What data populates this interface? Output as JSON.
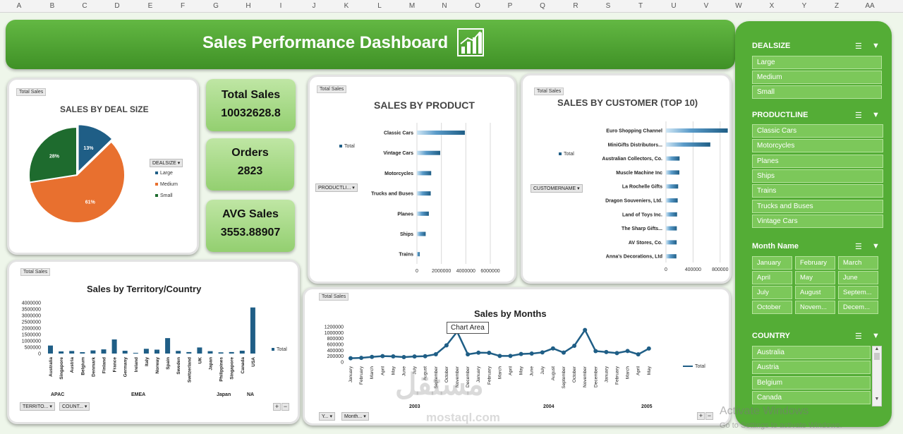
{
  "columns": [
    "A",
    "B",
    "C",
    "D",
    "E",
    "F",
    "G",
    "H",
    "I",
    "J",
    "K",
    "L",
    "M",
    "N",
    "O",
    "P",
    "Q",
    "R",
    "S",
    "T",
    "U",
    "V",
    "W",
    "X",
    "Y",
    "Z",
    "AA"
  ],
  "dashboard": {
    "title": "Sales Performance Dashboard",
    "chip": "Total Sales"
  },
  "deal_pie": {
    "title": "SALES BY DEAL SIZE",
    "legend_filter": "DEALSIZE",
    "legend": [
      "Large",
      "Medium",
      "Small"
    ],
    "labels": [
      "13%",
      "61%",
      "28%"
    ],
    "colors": [
      "#1f5e86",
      "#e8702f",
      "#1e6b2e"
    ]
  },
  "kpis": [
    {
      "label": "Total Sales",
      "value": "10032628.8"
    },
    {
      "label": "Orders",
      "value": "2823"
    },
    {
      "label": "AVG Sales",
      "value": "3553.88907"
    }
  ],
  "product_chart": {
    "title": "SALES BY PRODUCT",
    "legend": "Total",
    "filter": "PRODUCTLI..."
  },
  "customer_chart": {
    "title": "SALES BY CUSTOMER (TOP 10)",
    "legend": "Total",
    "filter": "CUSTOMERNAME"
  },
  "territory_chart": {
    "title": "Sales by Territory/Country",
    "legend": "Total",
    "filters": [
      "TERRITO...",
      "COUNT..."
    ],
    "groups": [
      "APAC",
      "EMEA",
      "Japan",
      "NA"
    ]
  },
  "months_chart": {
    "title": "Sales by Months",
    "legend": "Total",
    "tooltip": "Chart Area",
    "filters": [
      "Y...",
      "Month..."
    ],
    "years": [
      "2003",
      "2004",
      "2005"
    ]
  },
  "chart_data": [
    {
      "type": "pie",
      "title": "SALES BY DEAL SIZE",
      "categories": [
        "Large",
        "Medium",
        "Small"
      ],
      "values": [
        13,
        61,
        28
      ]
    },
    {
      "type": "bar",
      "title": "SALES BY PRODUCT",
      "categories": [
        "Classic Cars",
        "Vintage Cars",
        "Motorcycles",
        "Trucks and Buses",
        "Planes",
        "Ships",
        "Trains"
      ],
      "values": [
        3919615,
        1903151,
        1166388,
        1127790,
        975004,
        714437,
        226243
      ],
      "xlim": [
        0,
        6000000
      ],
      "ticks": [
        "0",
        "2000000",
        "4000000",
        "6000000"
      ]
    },
    {
      "type": "bar",
      "title": "SALES BY CUSTOMER (TOP 10)",
      "categories": [
        "Euro Shopping Channel",
        "MiniGifts Distributors...",
        "Australian Collectors, Co.",
        "Muscle Machine Inc",
        "La Rochelle Gifts",
        "Dragon Souveniers, Ltd.",
        "Land of Toys Inc.",
        "The Sharp Gifts...",
        "AV Stores, Co.",
        "Anna's Decorations, Ltd"
      ],
      "values": [
        912294,
        654858,
        200995,
        197736,
        180125,
        172989,
        164069,
        160010,
        157807,
        153996
      ],
      "xlim": [
        0,
        1000000
      ],
      "ticks": [
        "0",
        "400000",
        "800000"
      ]
    },
    {
      "type": "bar",
      "title": "Sales by Territory/Country",
      "categories": [
        "Australia",
        "Singapore",
        "Austria",
        "Belgium",
        "Denmark",
        "Finland",
        "France",
        "Germany",
        "Ireland",
        "Italy",
        "Norway",
        "Spain",
        "Sweden",
        "Switzerland",
        "UK",
        "Japan",
        "Philippines",
        "Singapore",
        "Canada",
        "USA"
      ],
      "values": [
        630623,
        170000,
        202062,
        108413,
        245637,
        329581,
        1110916,
        220472,
        57756,
        374674,
        307463,
        1215687,
        210014,
        117714,
        478880,
        188168,
        94015,
        118000,
        224079,
        3627983
      ],
      "ylim": [
        0,
        4000000
      ],
      "yticks": [
        "4000000",
        "3500000",
        "3000000",
        "2500000",
        "2000000",
        "1500000",
        "1000000",
        "500000",
        "0"
      ]
    },
    {
      "type": "line",
      "title": "Sales by Months",
      "categories": [
        "January",
        "February",
        "March",
        "April",
        "May",
        "June",
        "July",
        "August",
        "September",
        "October",
        "November",
        "December",
        "January",
        "February",
        "March",
        "April",
        "May",
        "June",
        "July",
        "August",
        "September",
        "October",
        "November",
        "December",
        "January",
        "February",
        "March",
        "April",
        "May"
      ],
      "values": [
        129754,
        140836,
        174505,
        201610,
        192673,
        168083,
        187731,
        197809,
        263973,
        568291,
        1029838,
        261876,
        316577,
        311419,
        205733,
        206148,
        273439,
        286674,
        327145,
        461501,
        320750,
        552924,
        1089048,
        372803,
        339386,
        303982,
        374263,
        261634,
        457861
      ],
      "ylim": [
        0,
        1200000
      ],
      "yticks": [
        "1200000",
        "1000000",
        "800000",
        "600000",
        "400000",
        "200000",
        "0"
      ]
    }
  ],
  "slicers": {
    "dealsize": {
      "title": "DEALSIZE",
      "items": [
        "Large",
        "Medium",
        "Small"
      ]
    },
    "productline": {
      "title": "PRODUCTLINE",
      "items": [
        "Classic Cars",
        "Motorcycles",
        "Planes",
        "Ships",
        "Trains",
        "Trucks and Buses",
        "Vintage Cars"
      ]
    },
    "month": {
      "title": "Month Name",
      "items": [
        "January",
        "February",
        "March",
        "April",
        "May",
        "June",
        "July",
        "August",
        "Septem...",
        "October",
        "Novem...",
        "Decem..."
      ]
    },
    "country": {
      "title": "COUNTRY",
      "items": [
        "Australia",
        "Austria",
        "Belgium",
        "Canada"
      ]
    }
  },
  "watermark": {
    "line1": "Activate Windows",
    "line2": "Go to Settings to activate Windows.",
    "brand": "mostaql.com",
    "brand_ar": "مستقل"
  }
}
